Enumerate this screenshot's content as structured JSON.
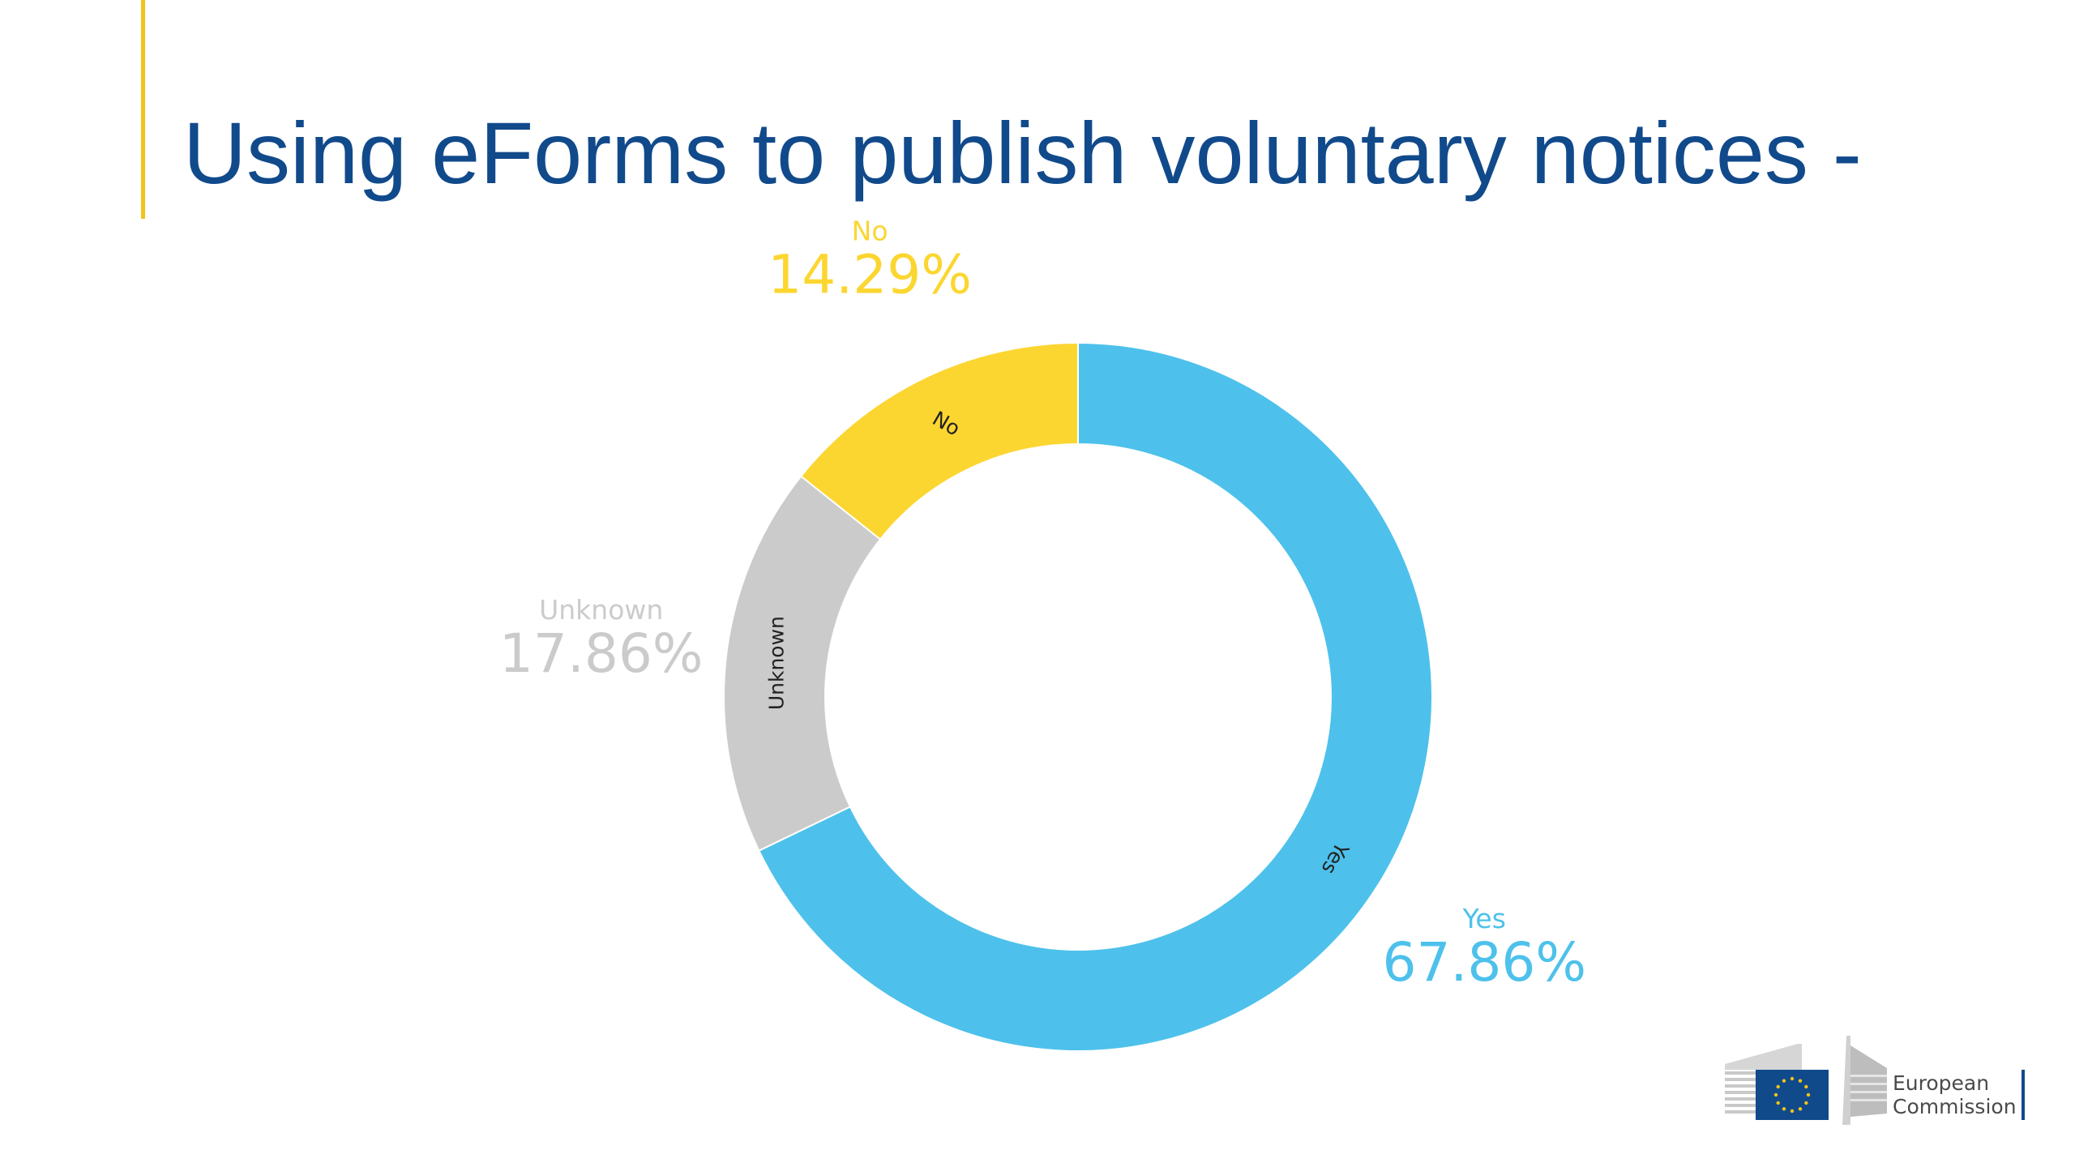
{
  "slide": {
    "title": "Using eForms to publish voluntary notices -",
    "accent_color": "#f0c419",
    "title_color": "#114a8b"
  },
  "chart_data": {
    "type": "pie",
    "variant": "donut",
    "slices": [
      {
        "label": "Yes",
        "value": 67.86,
        "value_label": "67.86%",
        "color": "#4dc1eb"
      },
      {
        "label": "Unknown",
        "value": 17.86,
        "value_label": "17.86%",
        "color": "#cbcbcb"
      },
      {
        "label": "No",
        "value": 14.29,
        "value_label": "14.29%",
        "color": "#fcd630"
      }
    ]
  },
  "logo": {
    "line1": "European",
    "line2": "Commission",
    "flag_color": "#114a8b",
    "star_color": "#f0c419"
  }
}
